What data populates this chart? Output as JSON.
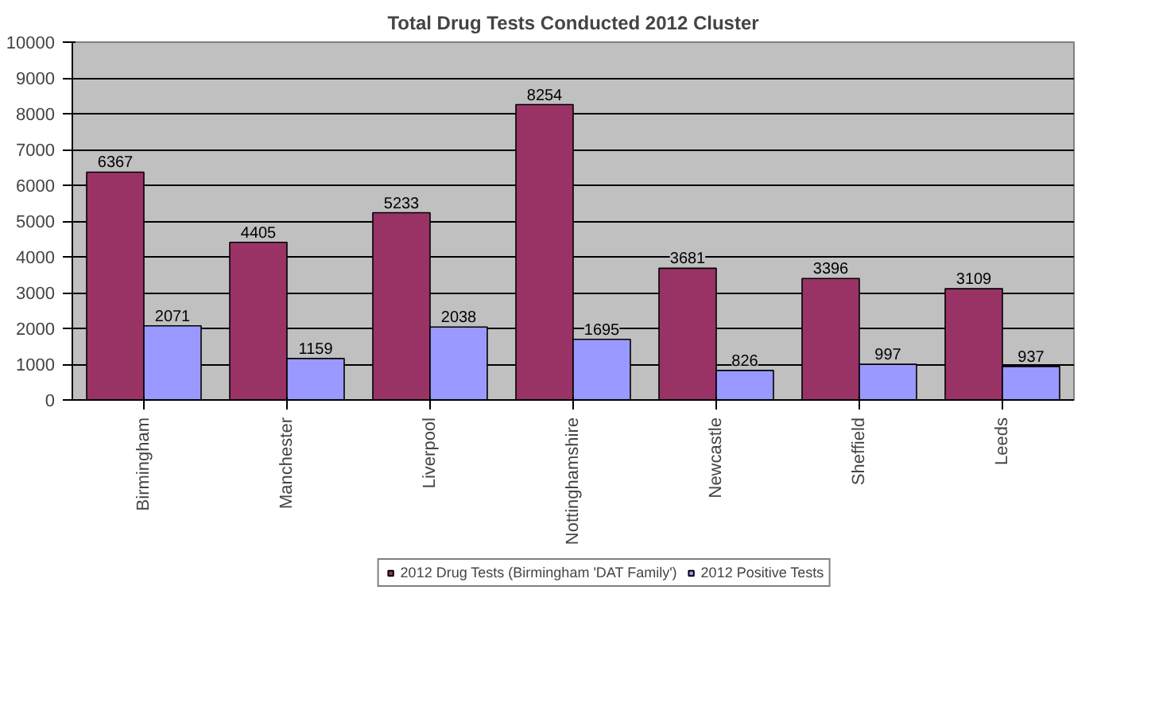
{
  "chart_data": {
    "type": "bar",
    "title": "Total Drug Tests Conducted 2012 Cluster",
    "categories": [
      "Birmingham",
      "Manchester",
      "Liverpool",
      "Nottinghamshire",
      "Newcastle",
      "Sheffield",
      "Leeds"
    ],
    "series": [
      {
        "name": "2012 Drug Tests (Birmingham 'DAT Family')",
        "color": "#993366",
        "values": [
          6367,
          4405,
          5233,
          8254,
          3681,
          3396,
          3109
        ]
      },
      {
        "name": "2012 Positive Tests",
        "color": "#9999ff",
        "values": [
          2071,
          1159,
          2038,
          1695,
          826,
          997,
          937
        ]
      }
    ],
    "ylim": [
      0,
      10000
    ],
    "yticks": [
      0,
      1000,
      2000,
      3000,
      4000,
      5000,
      6000,
      7000,
      8000,
      9000,
      10000
    ],
    "grid": "y",
    "legend": "bottom",
    "data_labels": true
  }
}
